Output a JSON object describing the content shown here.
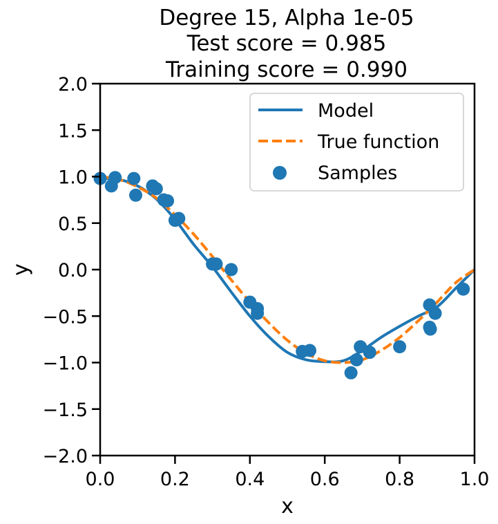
{
  "chart_data": {
    "type": "line",
    "title_lines": [
      "Degree 15, Alpha 1e-05",
      "Test score = 0.985",
      "Training score = 0.990"
    ],
    "xlabel": "x",
    "ylabel": "y",
    "xlim": [
      0.0,
      1.0
    ],
    "ylim": [
      -2.0,
      2.0
    ],
    "x_ticks": [
      0.0,
      0.2,
      0.4,
      0.6,
      0.8,
      1.0
    ],
    "x_tick_labels": [
      "0.0",
      "0.2",
      "0.4",
      "0.6",
      "0.8",
      "1.0"
    ],
    "y_ticks": [
      -2.0,
      -1.5,
      -1.0,
      -0.5,
      0.0,
      0.5,
      1.0,
      1.5,
      2.0
    ],
    "y_tick_labels": [
      "−2.0",
      "−1.5",
      "−1.0",
      "−0.5",
      "0.0",
      "0.5",
      "1.0",
      "1.5",
      "2.0"
    ],
    "grid": false,
    "legend_position": "top-right",
    "series": [
      {
        "name": "Model",
        "kind": "line",
        "color": "#1f77b4",
        "x": [
          0.0,
          0.05,
          0.1,
          0.15,
          0.2,
          0.25,
          0.3,
          0.35,
          0.4,
          0.45,
          0.5,
          0.55,
          0.6,
          0.65,
          0.7,
          0.75,
          0.8,
          0.85,
          0.9,
          0.95,
          1.0
        ],
        "y": [
          0.98,
          0.97,
          0.9,
          0.76,
          0.54,
          0.27,
          0.03,
          -0.24,
          -0.5,
          -0.72,
          -0.89,
          -0.97,
          -0.99,
          -0.98,
          -0.87,
          -0.73,
          -0.61,
          -0.5,
          -0.4,
          -0.2,
          0.0
        ]
      },
      {
        "name": "True function",
        "kind": "dashed-line",
        "color": "#ff7f0e",
        "x": [
          0.0,
          0.05,
          0.1,
          0.15,
          0.2,
          0.25,
          0.3,
          0.35,
          0.4,
          0.45,
          0.5,
          0.55,
          0.6,
          0.65,
          0.7,
          0.75,
          0.8,
          0.85,
          0.9,
          0.95,
          1.0
        ],
        "y": [
          1.0,
          0.97,
          0.89,
          0.77,
          0.59,
          0.38,
          0.14,
          -0.11,
          -0.35,
          -0.57,
          -0.76,
          -0.9,
          -0.98,
          -1.0,
          -0.97,
          -0.87,
          -0.73,
          -0.55,
          -0.35,
          -0.14,
          0.0
        ]
      },
      {
        "name": "Samples",
        "kind": "scatter",
        "color": "#1f77b4",
        "x": [
          0.0,
          0.03,
          0.04,
          0.09,
          0.095,
          0.14,
          0.15,
          0.17,
          0.18,
          0.2,
          0.21,
          0.3,
          0.31,
          0.35,
          0.4,
          0.42,
          0.42,
          0.54,
          0.56,
          0.67,
          0.685,
          0.695,
          0.72,
          0.8,
          0.88,
          0.88,
          0.882,
          0.895,
          0.97
        ],
        "y": [
          0.98,
          0.9,
          0.99,
          0.98,
          0.8,
          0.9,
          0.87,
          0.75,
          0.74,
          0.53,
          0.55,
          0.06,
          0.06,
          0.0,
          -0.35,
          -0.42,
          -0.47,
          -0.88,
          -0.87,
          -1.11,
          -0.97,
          -0.83,
          -0.89,
          -0.83,
          -0.38,
          -0.62,
          -0.64,
          -0.47,
          -0.21
        ]
      }
    ]
  }
}
